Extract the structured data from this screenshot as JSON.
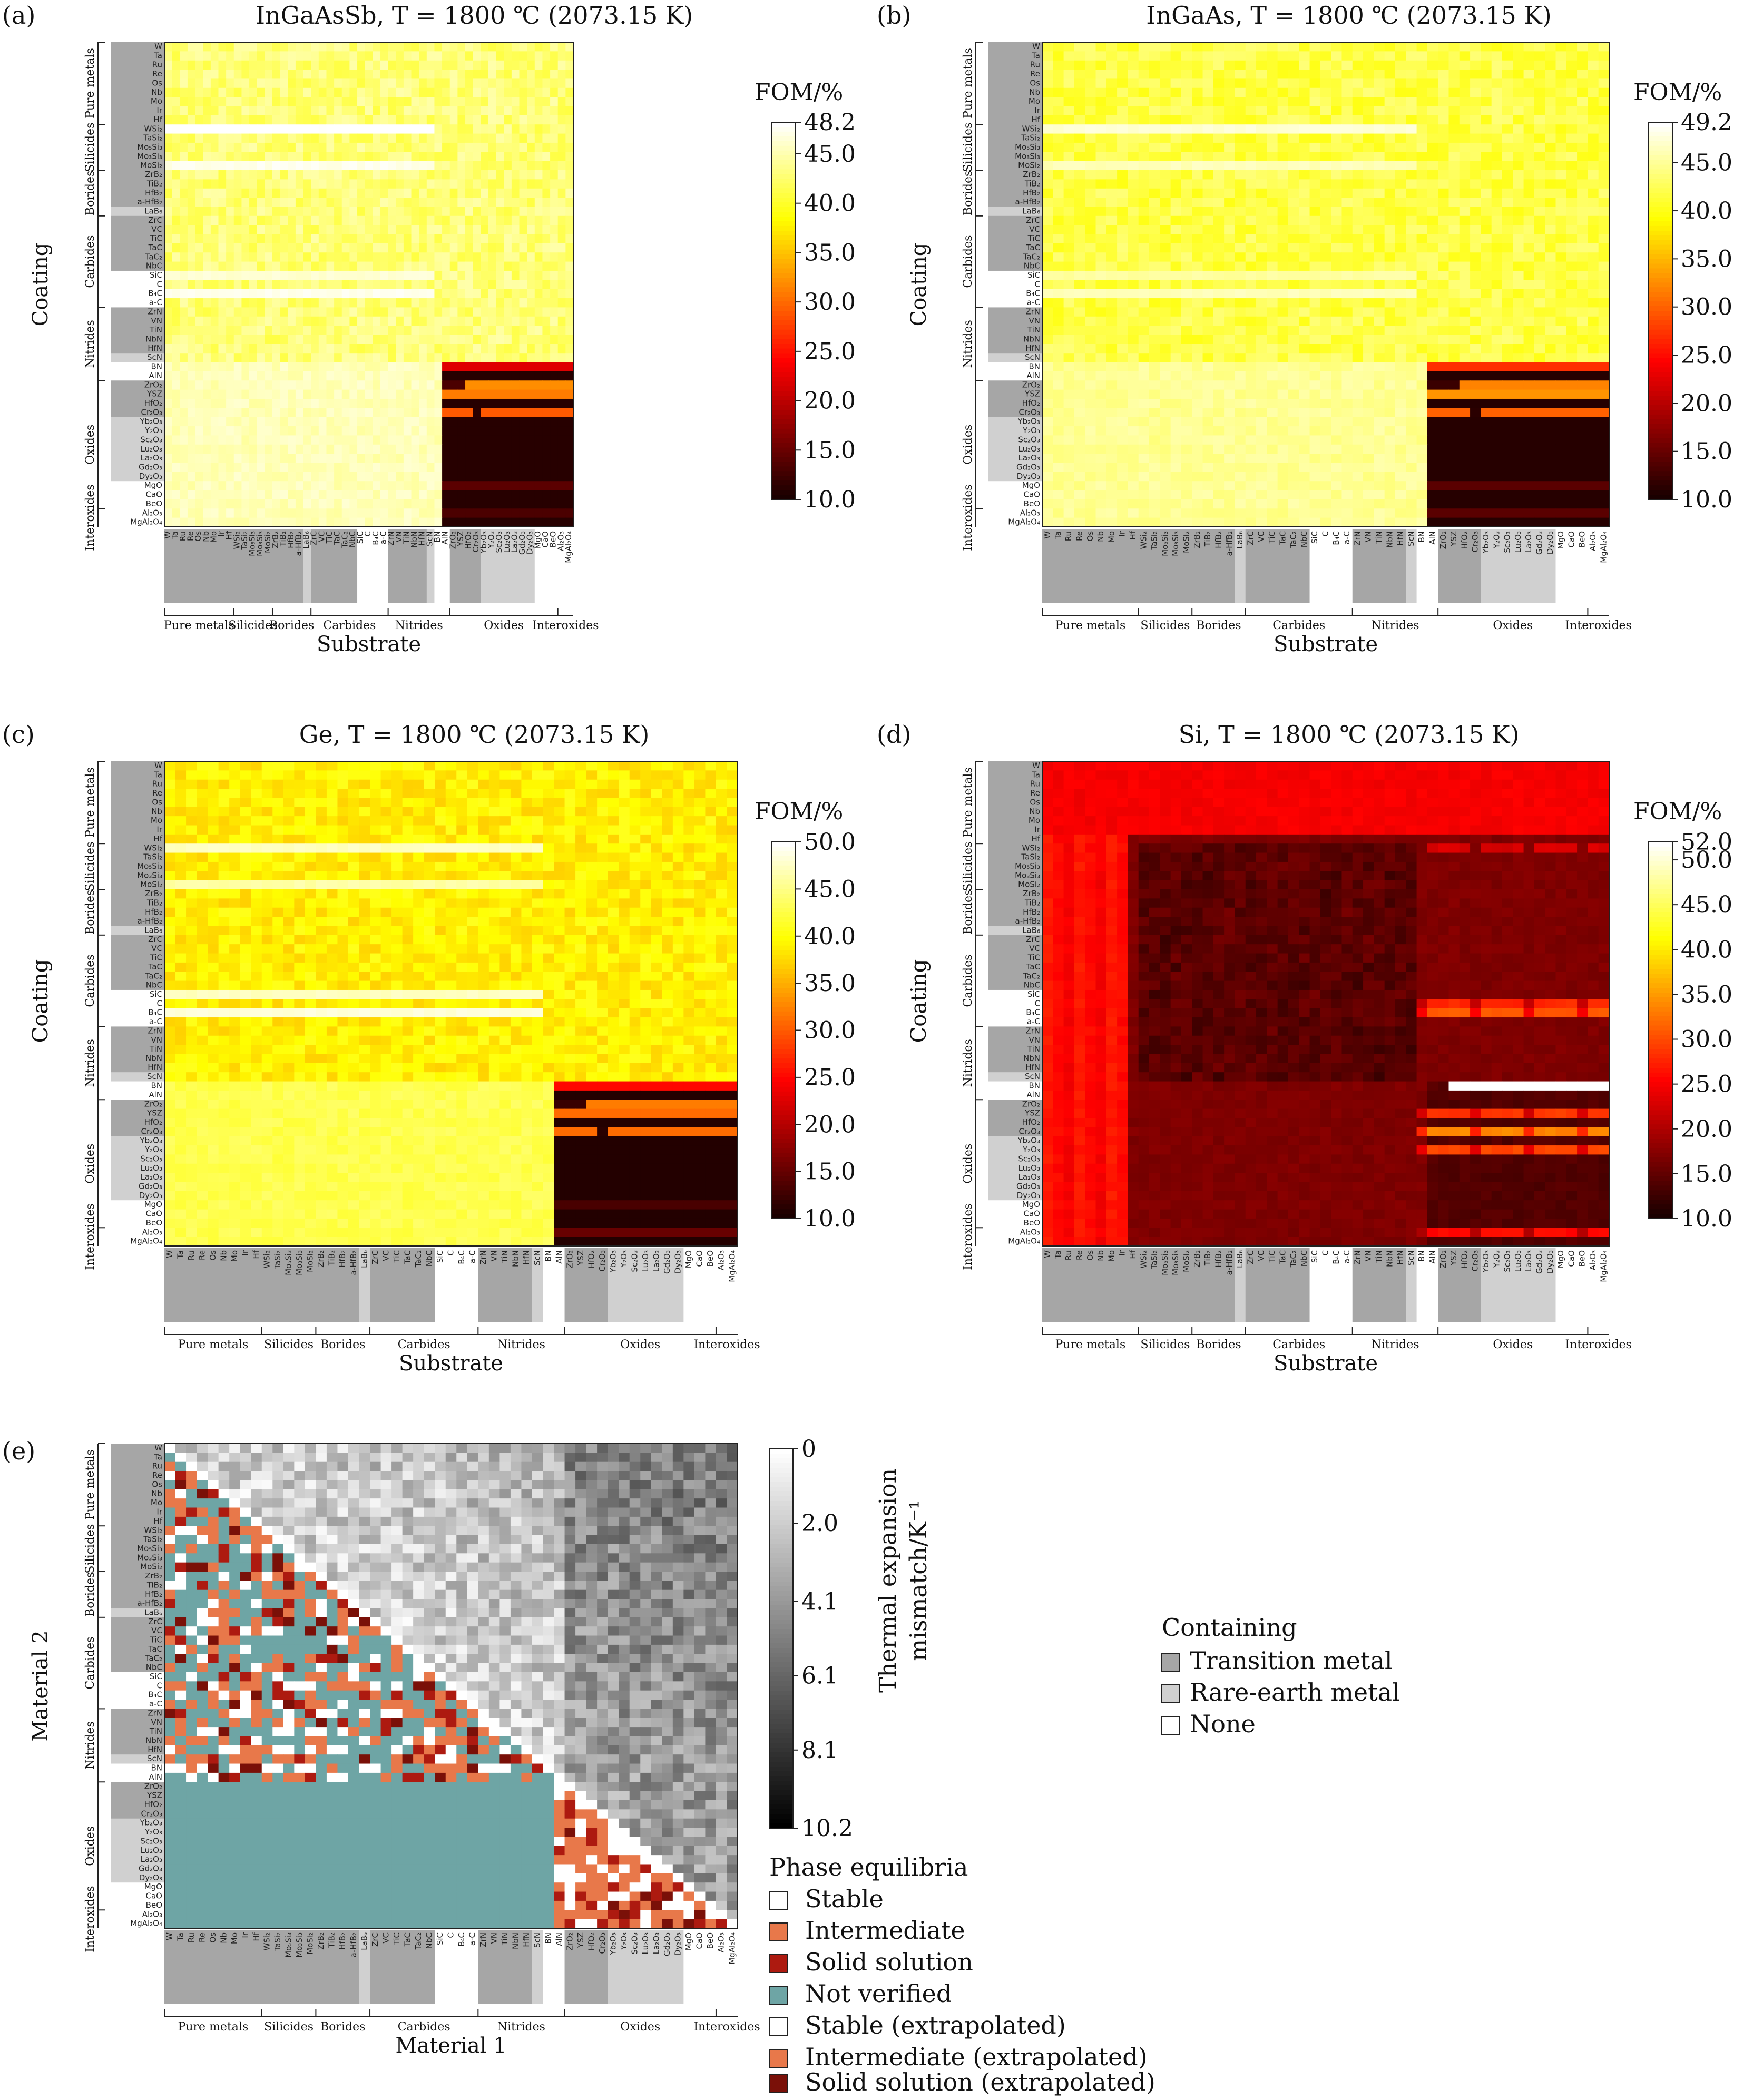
{
  "materials": [
    "W",
    "Ta",
    "Ru",
    "Re",
    "Os",
    "Nb",
    "Mo",
    "Ir",
    "Hf",
    "WSi₂",
    "TaSi₂",
    "Mo₅Si₃",
    "Mo₃Si₃",
    "MoSi₂",
    "ZrB₂",
    "TiB₂",
    "HfB₂",
    "a-HfB₂",
    "LaB₆",
    "ZrC",
    "VC",
    "TiC",
    "TaC",
    "TaC₂",
    "NbC",
    "SiC",
    "C",
    "B₄C",
    "a-C",
    "ZrN",
    "VN",
    "TiN",
    "NbN",
    "HfN",
    "ScN",
    "BN",
    "AlN",
    "ZrO₂",
    "YSZ",
    "HfO₂",
    "Cr₂O₃",
    "Yb₂O₃",
    "Y₂O₃",
    "Sc₂O₃",
    "Lu₂O₃",
    "La₂O₃",
    "Gd₂O₃",
    "Dy₂O₃",
    "MgO",
    "CaO",
    "BeO",
    "Al₂O₃",
    "MgAl₂O₄"
  ],
  "material_shading": [
    "transition",
    "transition",
    "transition",
    "transition",
    "transition",
    "transition",
    "transition",
    "transition",
    "transition",
    "transition",
    "transition",
    "transition",
    "transition",
    "transition",
    "transition",
    "transition",
    "transition",
    "transition",
    "rare",
    "transition",
    "transition",
    "transition",
    "transition",
    "transition",
    "transition",
    "none",
    "none",
    "none",
    "none",
    "transition",
    "transition",
    "transition",
    "transition",
    "transition",
    "rare",
    "none",
    "none",
    "transition",
    "transition",
    "transition",
    "transition",
    "rare",
    "rare",
    "rare",
    "rare",
    "rare",
    "rare",
    "rare",
    "none",
    "none",
    "none",
    "none",
    "none"
  ],
  "groups": [
    {
      "label": "Pure metals",
      "start": 0,
      "end": 8
    },
    {
      "label": "Silicides",
      "start": 9,
      "end": 13
    },
    {
      "label": "Borides",
      "start": 14,
      "end": 18
    },
    {
      "label": "Carbides",
      "start": 19,
      "end": 28
    },
    {
      "label": "Nitrides",
      "start": 29,
      "end": 36
    },
    {
      "label": "Oxides",
      "start": 37,
      "end": 50
    },
    {
      "label": "Interoxides",
      "start": 51,
      "end": 52
    }
  ],
  "panels": [
    {
      "panel_label": "(a)",
      "title": "InGaAsSb, T = 1800 ℃ (2073.15 K)",
      "xlabel": "Substrate",
      "ylabel": "Coating",
      "colorbar_title": "FOM/%",
      "colorbar_ticks": [
        "48.2",
        "45.0",
        "40.0",
        "35.0",
        "30.0",
        "25.0",
        "20.0",
        "15.0",
        "10.0"
      ]
    },
    {
      "panel_label": "(b)",
      "title": "InGaAs, T = 1800 ℃ (2073.15 K)",
      "xlabel": "Substrate",
      "ylabel": "Coating",
      "colorbar_title": "FOM/%",
      "colorbar_ticks": [
        "49.2",
        "45.0",
        "40.0",
        "35.0",
        "30.0",
        "25.0",
        "20.0",
        "15.0",
        "10.0"
      ]
    },
    {
      "panel_label": "(c)",
      "title": "Ge, T = 1800 ℃ (2073.15 K)",
      "xlabel": "Substrate",
      "ylabel": "Coating",
      "colorbar_title": "FOM/%",
      "colorbar_ticks": [
        "50.0",
        "45.0",
        "40.0",
        "35.0",
        "30.0",
        "25.0",
        "20.0",
        "15.0",
        "10.0"
      ]
    },
    {
      "panel_label": "(d)",
      "title": "Si, T = 1800 ℃ (2073.15 K)",
      "xlabel": "Substrate",
      "ylabel": "Coating",
      "colorbar_title": "FOM/%",
      "colorbar_ticks": [
        "52.0",
        "50.0",
        "45.0",
        "40.0",
        "35.0",
        "30.0",
        "25.0",
        "20.0",
        "15.0",
        "10.0"
      ]
    },
    {
      "panel_label": "(e)",
      "title": "",
      "xlabel": "Material 1",
      "ylabel": "Material 2",
      "colorbar_title": "Thermal expansion mismatch/K⁻¹",
      "colorbar_ticks": [
        "0",
        "2.0",
        "4.1",
        "6.1",
        "8.1",
        "10.2"
      ]
    }
  ],
  "chart_data": [
    {
      "type": "heatmap",
      "panel": "(a)",
      "semiconductor": "InGaAsSb",
      "temperature_C": 1800,
      "temperature_K": 2073.15,
      "colorbar_range": [
        10.0,
        48.2
      ],
      "colormap": "hot",
      "block_values": {
        "default": 43,
        "bright_rows": {
          "9": 48,
          "13": 47,
          "25": 46,
          "27": 47
        },
        "lower_left_oxides_nitrides": 45.5,
        "lower_right_oxide_block": 10.8,
        "oxide_row_bands": {
          "35": 22,
          "37": 13,
          "38": 31,
          "40": 29,
          "48": 14,
          "51": 13
        }
      }
    },
    {
      "type": "heatmap",
      "panel": "(b)",
      "semiconductor": "InGaAs",
      "temperature_C": 1800,
      "temperature_K": 2073.15,
      "colorbar_range": [
        10.0,
        49.2
      ],
      "colormap": "hot",
      "block_values": {
        "default": 42,
        "bright_rows": {
          "9": 47,
          "13": 46,
          "25": 45,
          "27": 46
        },
        "lower_left_oxides_nitrides": 45,
        "lower_right_oxide_block": 10.8,
        "oxide_row_bands": {
          "35": 27,
          "37": 12,
          "38": 33,
          "40": 30,
          "48": 14,
          "51": 14
        }
      }
    },
    {
      "type": "heatmap",
      "panel": "(c)",
      "semiconductor": "Ge",
      "temperature_C": 1800,
      "temperature_K": 2073.15,
      "colorbar_range": [
        10.0,
        50.0
      ],
      "colormap": "hot",
      "block_values": {
        "default": 39,
        "bright_rows": {
          "9": 47,
          "13": 46,
          "25": 47,
          "27": 48
        },
        "lower_left_oxides_nitrides": 43,
        "lower_right_oxide_block": 10.6,
        "oxide_row_bands": {
          "35": 25,
          "37": 12,
          "38": 31,
          "40": 31,
          "48": 13,
          "51": 15
        }
      }
    },
    {
      "type": "heatmap",
      "panel": "(d)",
      "semiconductor": "Si",
      "temperature_C": 1800,
      "temperature_K": 2073.15,
      "colorbar_range": [
        10.0,
        52.0
      ],
      "colormap": "hot",
      "block_values": {
        "default": 16,
        "top_metal_rows": 24,
        "metal_columns": 26,
        "dark_core": 12,
        "bright_rows": {
          "35": 52
        },
        "lower_right_oxide_block": 13,
        "oxide_row_bands": {
          "9": 22,
          "26": 27,
          "27": 30,
          "38": 28,
          "40": 33,
          "42": 29,
          "51": 25
        }
      }
    },
    {
      "type": "heatmap",
      "panel": "(e)",
      "quantity": "Thermal expansion mismatch / phase equilibria",
      "colorbar_range": [
        0,
        10.2
      ],
      "colormap": "grayscale_reversed",
      "upper_triangle": "thermal expansion mismatch",
      "lower_triangle": "phase equilibria"
    }
  ],
  "shading_legend": {
    "title": "Containing",
    "items": [
      {
        "label": "Transition metal",
        "color": "#a6a6a6"
      },
      {
        "label": "Rare-earth metal",
        "color": "#d0d0d0"
      },
      {
        "label": "None",
        "color": "#ffffff"
      }
    ]
  },
  "phase_legend": {
    "title": "Phase equilibria",
    "items": [
      {
        "label": "Stable",
        "color": "#ffffff"
      },
      {
        "label": "Intermediate",
        "color": "#e8784a"
      },
      {
        "label": "Solid solution",
        "color": "#ad1a10"
      },
      {
        "label": "Not verified",
        "color": "#6ea5a5"
      },
      {
        "label": "Stable (extrapolated)",
        "color": "#ffffff"
      },
      {
        "label": "Intermediate (extrapolated)",
        "color": "#e8784a"
      },
      {
        "label": "Solid solution (extrapolated)",
        "color": "#7a1008"
      }
    ]
  }
}
